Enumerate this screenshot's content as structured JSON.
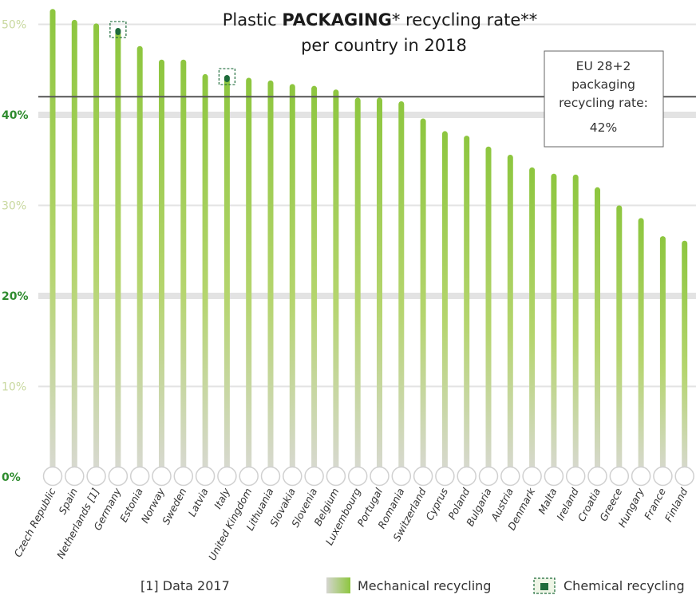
{
  "chart_data": {
    "type": "bar",
    "title_part1": "Plastic ",
    "title_bold": "PACKAGING",
    "title_part2": "* recycling rate**",
    "title_line2": "per country in 2018",
    "categories": [
      "Czech Republic",
      "Spain",
      "Netherlands [1]",
      "Germany",
      "Estonia",
      "Norway",
      "Sweden",
      "Latvia",
      "Italy",
      "United Kingdom",
      "Lithuania",
      "Slovakia",
      "Slovenia",
      "Belgium",
      "Luxembourg",
      "Portugal",
      "Romania",
      "Switzerland",
      "Cyprus",
      "Poland",
      "Bulgaria",
      "Austria",
      "Denmark",
      "Malta",
      "Ireland",
      "Croatia",
      "Greece",
      "Hungary",
      "France",
      "Finland"
    ],
    "series": [
      {
        "name": "Mechanical recycling",
        "values": [
          51.7,
          50.5,
          50.1,
          49.2,
          47.6,
          46.1,
          46.1,
          44.5,
          44.0,
          44.1,
          43.8,
          43.4,
          43.2,
          42.8,
          41.9,
          41.9,
          41.5,
          39.6,
          38.2,
          37.7,
          36.5,
          35.6,
          34.2,
          33.5,
          33.4,
          32.0,
          30.0,
          28.6,
          26.6,
          26.1
        ]
      },
      {
        "name": "Chemical recycling",
        "values": [
          0,
          0,
          0,
          0.4,
          0,
          0,
          0,
          0,
          0.4,
          0,
          0,
          0,
          0,
          0,
          0,
          0,
          0,
          0,
          0,
          0,
          0,
          0,
          0,
          0,
          0,
          0,
          0,
          0,
          0,
          0
        ]
      }
    ],
    "y_ticks": [
      "50%",
      "40%",
      "30%",
      "20%",
      "10%",
      "0%"
    ],
    "y_tick_values": [
      50,
      40,
      30,
      20,
      10,
      0
    ],
    "ylim": [
      0,
      52
    ],
    "reference_line": {
      "value": 42,
      "label_lines": [
        "EU 28+2",
        "packaging",
        "recycling rate:",
        "42%"
      ]
    },
    "footnote": "[1] Data 2017",
    "legend": {
      "position": "bottom-right",
      "items": [
        "Mechanical recycling",
        "Chemical recycling"
      ]
    },
    "colors": {
      "bar_top": "#8dc63f",
      "bar_bottom": "#d8d8d8",
      "chemical": "#1e6b3a",
      "grid": "#e3e3e3",
      "reference": "#555555",
      "ytick_major": "#2e8b2e",
      "ytick_minor": "#c9d9a0"
    }
  }
}
